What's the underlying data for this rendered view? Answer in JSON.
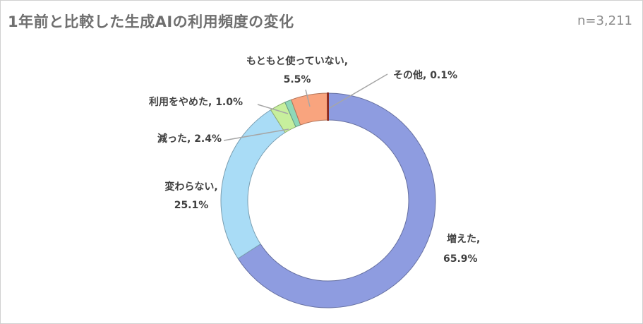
{
  "title": "1年前と比較した生成AIの利用頻度の変化",
  "sample_size": "n=3,211",
  "chart_data": {
    "type": "pie",
    "donut": true,
    "legend": "none",
    "slices": [
      {
        "label": "増えた",
        "value": 65.9,
        "value_text": "65.9%",
        "color": "#8e9ce0"
      },
      {
        "label": "変わらない",
        "value": 25.1,
        "value_text": "25.1%",
        "color": "#a9dcf6"
      },
      {
        "label": "減った",
        "value": 2.4,
        "value_text": "2.4%",
        "color": "#c7ef9d"
      },
      {
        "label": "利用をやめた",
        "value": 1.0,
        "value_text": "1.0%",
        "color": "#8ed8b8"
      },
      {
        "label": "もともと使っていない",
        "value": 5.5,
        "value_text": "5.5%",
        "color": "#f9a47e"
      },
      {
        "label": "その他",
        "value": 0.1,
        "value_text": "0.1%",
        "color": "#c0392b"
      }
    ]
  }
}
